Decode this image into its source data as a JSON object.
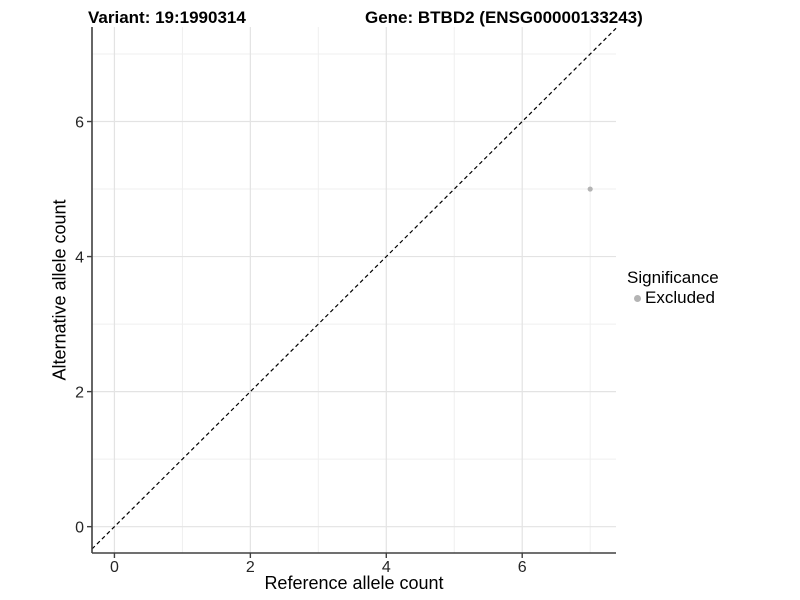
{
  "chart_data": {
    "type": "scatter",
    "title_left": "Variant: 19:1990314",
    "title_right": "Gene: BTBD2 (ENSG00000133243)",
    "xlabel": "Reference allele count",
    "ylabel": "Alternative allele count",
    "xlim": [
      -0.33,
      7.38
    ],
    "ylim": [
      -0.39,
      7.4
    ],
    "x_ticks": [
      0,
      2,
      4,
      6
    ],
    "y_ticks": [
      0,
      2,
      4,
      6
    ],
    "x_minor_ticks": [
      1,
      3,
      5,
      7
    ],
    "y_minor_ticks": [
      1,
      3,
      5,
      7
    ],
    "grid": true,
    "identity_line": {
      "slope": 1,
      "intercept": 0,
      "style": "dashed"
    },
    "series": [
      {
        "name": "Excluded",
        "color": "#b4b4b4",
        "points": [
          {
            "x": 7,
            "y": 5
          }
        ]
      }
    ],
    "legend": {
      "title": "Significance",
      "position": "right",
      "items": [
        {
          "label": "Excluded",
          "color": "#b4b4b4"
        }
      ]
    },
    "style": {
      "background": "#ffffff",
      "grid_major_color": "#e3e3e3",
      "grid_minor_color": "#efefef",
      "axis_line_color": "#404040",
      "tick_color": "#404040",
      "tick_label_color": "#262626",
      "identity_line_color": "#000000",
      "title_color": "#000000"
    }
  }
}
